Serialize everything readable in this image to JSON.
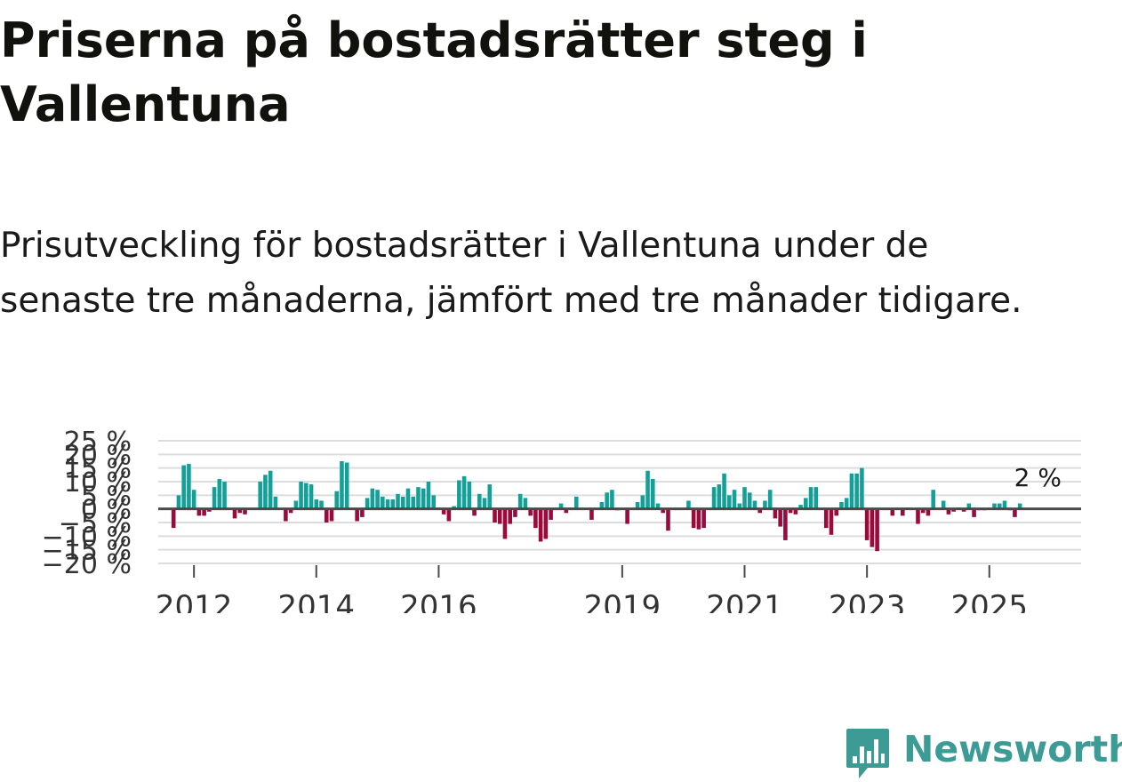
{
  "title": "Priserna på bostadsrätter steg i Vallentuna",
  "subtitle": "Prisutveckling för bostadsrätter i Vallentuna under de senaste tre månaderna, jämfört med tre månader tidigare.",
  "brand": {
    "name": "Newsworthy",
    "icon": "newsworthy-logo-icon",
    "color": "#3d9b96"
  },
  "colors": {
    "positive": "#14a098",
    "negative": "#9b0a3c",
    "zero_line": "#4a4a4a",
    "grid": "#dddddd",
    "tick_text": "#333333"
  },
  "chart_data": {
    "type": "bar",
    "title": "Priserna på bostadsrätter steg i Vallentuna",
    "xlabel": "",
    "ylabel": "",
    "unit": "%",
    "ylim": [
      -20,
      25
    ],
    "yticks": [
      -20,
      -15,
      -10,
      -5,
      0,
      5,
      10,
      15,
      20,
      25
    ],
    "ytick_labels": [
      "−20 %",
      "−15 %",
      "−10 %",
      "−5 %",
      "0 %",
      "5 %",
      "10 %",
      "15 %",
      "20 %",
      "25 %"
    ],
    "x_start": "2011-09",
    "xlim": [
      "2011-06",
      "2026-07"
    ],
    "xticks": [
      "2012-01",
      "2014-01",
      "2016-01",
      "2019-01",
      "2021-01",
      "2023-01",
      "2025-01"
    ],
    "xtick_labels": [
      "2012",
      "2014",
      "2016",
      "2019",
      "2021",
      "2023",
      "2025"
    ],
    "values": [
      -7,
      5,
      16,
      16.5,
      7,
      -2.5,
      -2.5,
      -1,
      8,
      11,
      10,
      0,
      -3.5,
      -1.5,
      -2,
      0,
      0,
      10,
      12.5,
      14,
      4.5,
      0,
      -4.5,
      -1.5,
      3,
      10,
      9.5,
      9,
      3.5,
      3,
      -5,
      -4.5,
      6.5,
      17.5,
      17,
      0,
      -4.5,
      -3,
      4,
      7.5,
      7,
      4.5,
      3.5,
      3.5,
      5.5,
      4.5,
      7.5,
      4.5,
      8,
      7.5,
      10,
      5,
      0.5,
      -2,
      -4.5,
      1,
      10.5,
      12,
      10,
      -2.5,
      5.5,
      4,
      9,
      -5,
      -5.5,
      -11,
      -5.5,
      -3,
      5.5,
      4,
      -2.5,
      -7,
      -12,
      -11,
      -4,
      0,
      2,
      -1.5,
      0.5,
      4.5,
      0,
      0,
      -4,
      0,
      2.5,
      6,
      7,
      -0.5,
      0,
      -5.5,
      0,
      2.5,
      5,
      14,
      11,
      2,
      -1.5,
      -8,
      0,
      0,
      0,
      3,
      -7,
      -7.5,
      -7,
      0,
      8,
      9,
      13,
      5,
      7,
      2,
      8,
      6,
      3,
      -1.5,
      3,
      7,
      -3.5,
      -6.5,
      -11.5,
      -1.5,
      -2,
      1.5,
      4,
      8,
      8,
      0,
      -7,
      -9.5,
      -2.5,
      2.5,
      4,
      13,
      13,
      15,
      -11.5,
      -14,
      -15.5,
      0,
      0,
      -2.5,
      0,
      -2.5,
      0.5,
      0,
      -5.5,
      -1.5,
      -2.5,
      7,
      0,
      3,
      -2,
      -1,
      0.5,
      -1,
      2,
      -3,
      -0.5,
      -0.5,
      0,
      2,
      2,
      3,
      -0.5,
      -3,
      2
    ],
    "last_value_label": "2 %",
    "last_value": 2
  }
}
